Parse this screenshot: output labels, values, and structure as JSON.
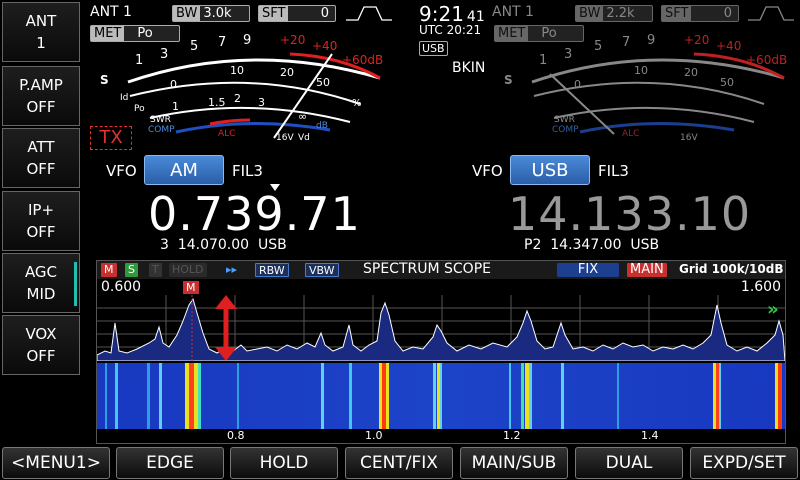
{
  "side_buttons": [
    {
      "title": "ANT",
      "value": "1"
    },
    {
      "title": "P.AMP",
      "value": "OFF"
    },
    {
      "title": "ATT",
      "value": "OFF"
    },
    {
      "title": "IP+",
      "value": "OFF"
    },
    {
      "title": "AGC",
      "value": "MID"
    },
    {
      "title": "VOX",
      "value": "OFF"
    }
  ],
  "main": {
    "ant": "ANT 1",
    "bw_label": "BW",
    "bw_value": "3.0k",
    "sft_label": "SFT",
    "sft_value": "0",
    "met_label": "MET",
    "met_value": "Po",
    "tx_label": "TX",
    "vfo_label": "VFO",
    "mode": "AM",
    "filter": "FIL3",
    "frequency": "0.739.71",
    "memo": "3  14.070.00  USB"
  },
  "sub": {
    "ant": "ANT 1",
    "bw_label": "BW",
    "bw_value": "2.2k",
    "sft_label": "SFT",
    "sft_value": "0",
    "met_label": "MET",
    "met_value": "Po",
    "bkin": "BKIN",
    "vfo_label": "VFO",
    "mode": "USB",
    "filter": "FIL3",
    "frequency": "14.133.10",
    "memo": "P2  14.347.00  USB"
  },
  "clock": {
    "time": "9:21",
    "seconds": "41",
    "utc": "UTC 20:21",
    "usb": "USB"
  },
  "meter": {
    "s_label": "S",
    "s_scale": [
      "1",
      "3",
      "5",
      "7",
      "9",
      "+20",
      "+40",
      "+60dB"
    ],
    "po_label": "Po",
    "po_scale": [
      "0",
      "10",
      "20",
      "50",
      "100",
      "%"
    ],
    "id_label": "Id",
    "id_scale": [
      "0",
      "5",
      "10",
      "15",
      "20",
      "25",
      "A"
    ],
    "swr_label": "SWR",
    "swr_scale": [
      "1",
      "1.5",
      "2",
      "3",
      "∞"
    ],
    "comp_label": "COMP",
    "comp_scale": [
      "0",
      "10",
      "20",
      "dB"
    ],
    "alc_label": "ALC",
    "vd_scale": [
      "10",
      "15",
      "16V",
      "Vd"
    ],
    "po_pct_scale": [
      "0",
      "25",
      "50",
      "75",
      "100",
      "%"
    ]
  },
  "scope": {
    "tags": [
      "M",
      "S",
      "T",
      "HOLD",
      "▸▸",
      "RBW",
      "VBW"
    ],
    "title": "SPECTRUM SCOPE",
    "fix": "FIX",
    "main_tag": "MAIN",
    "grid": "Grid 100k/10dB",
    "start": "0.600",
    "end": "1.600",
    "marker": "M",
    "axis_ticks": [
      "0.8",
      "1.0",
      "1.2",
      "1.4"
    ],
    "arrow_right": "»"
  },
  "menu": [
    "<MENU1>",
    "EDGE",
    "HOLD",
    "CENT/FIX",
    "MAIN/SUB",
    "DUAL",
    "EXPD/SET"
  ],
  "colors": {
    "mode_button": "#3b78c8",
    "s_red": "#e02020",
    "alc_blue": "#2050c0",
    "tx_red": "#e03030",
    "agc_bar": "#20c0b0"
  }
}
